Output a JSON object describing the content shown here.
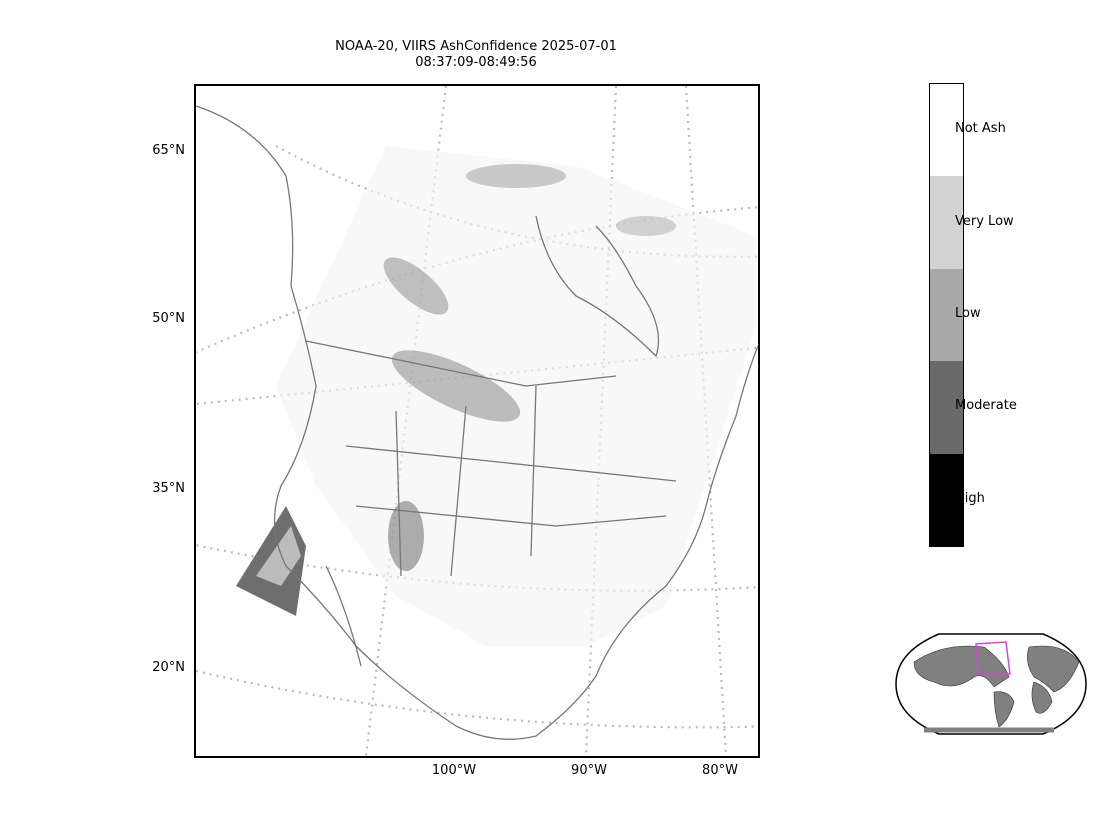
{
  "title": {
    "line1": "NOAA-20, VIIRS AshConfidence 2025-07-01",
    "line2": "08:37:09-08:49:56"
  },
  "map": {
    "lat_labels": [
      "65°N",
      "50°N",
      "35°N",
      "20°N"
    ],
    "lon_labels": [
      "100°W",
      "90°W",
      "80°W"
    ],
    "gridline_color": "#bbbbbb",
    "coastline_color": "#777777"
  },
  "colorbar": {
    "categories": [
      {
        "label": "Not Ash",
        "color": "#ffffff"
      },
      {
        "label": "Very Low",
        "color": "#d3d3d3"
      },
      {
        "label": "Low",
        "color": "#a9a9a9"
      },
      {
        "label": "Moderate",
        "color": "#696969"
      },
      {
        "label": "High",
        "color": "#000000"
      }
    ]
  },
  "locator": {
    "land_color": "#808080",
    "box_color": "#e040e0"
  }
}
